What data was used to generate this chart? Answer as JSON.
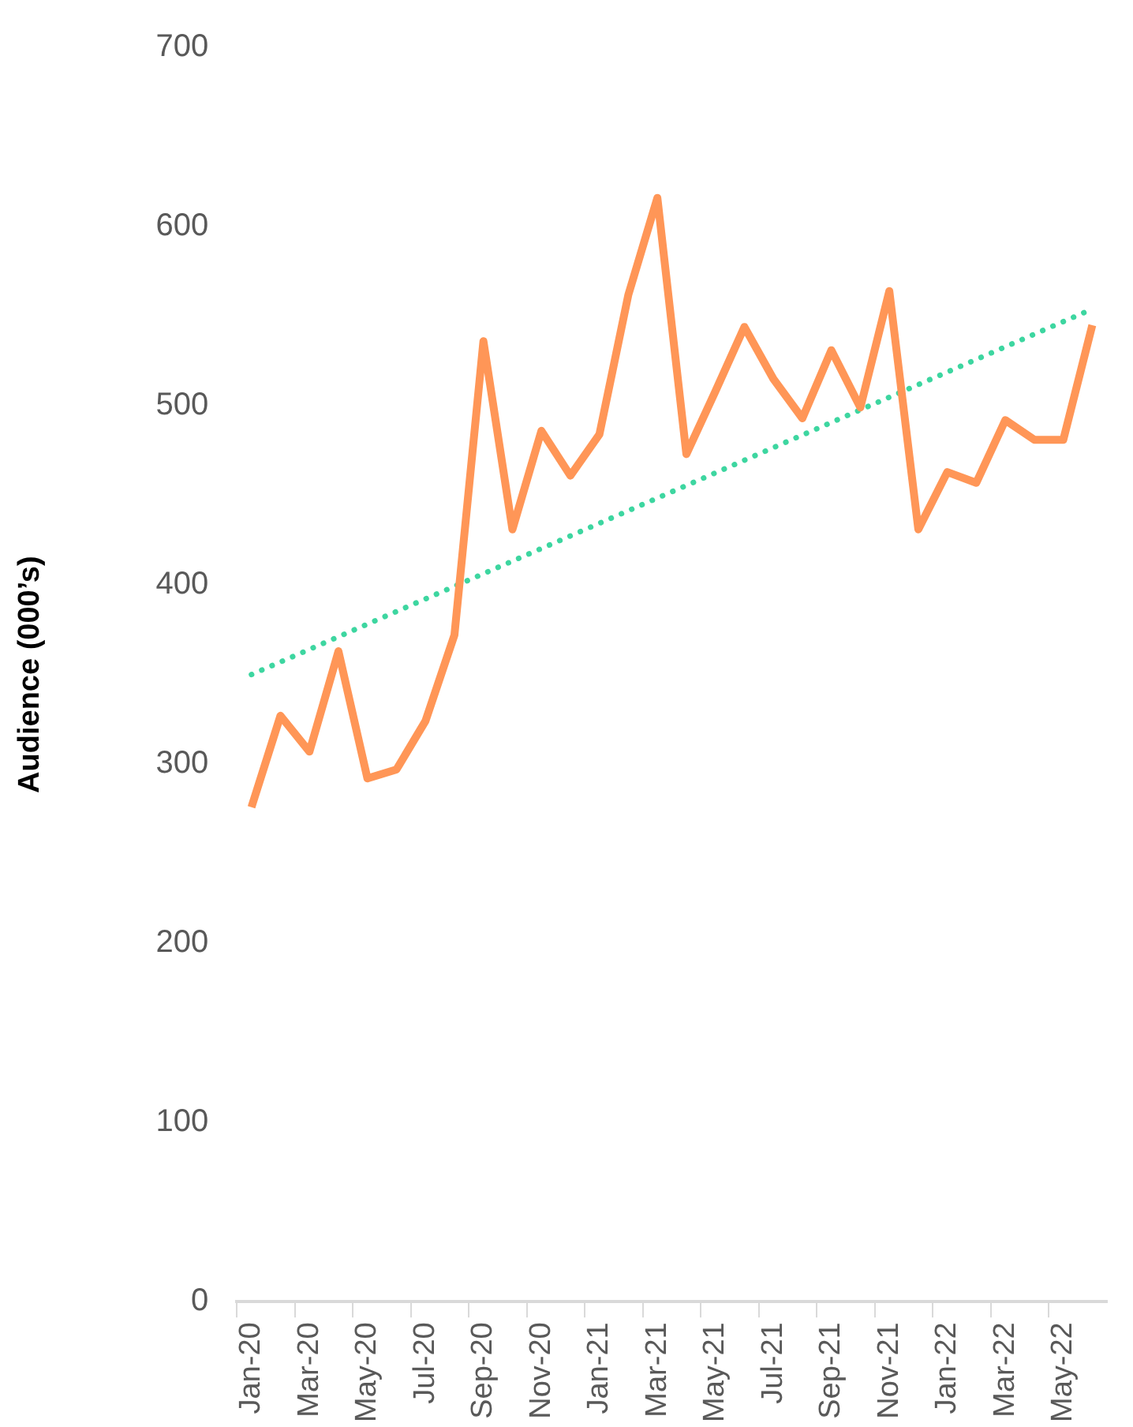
{
  "chart_data": {
    "type": "line",
    "ylabel": "Audience (000’s)",
    "categories": [
      "Jan-20",
      null,
      "Mar-20",
      null,
      "May-20",
      null,
      "Jul-20",
      null,
      "Sep-20",
      null,
      "Nov-20",
      null,
      "Jan-21",
      null,
      "Mar-21",
      null,
      "May-21",
      null,
      "Jul-21",
      null,
      "Sep-21",
      null,
      "Nov-21",
      null,
      "Jan-22",
      null,
      "Mar-22",
      null,
      "May-22",
      null
    ],
    "series": [
      {
        "color": "#ff9657",
        "values": [
          276,
          327,
          307,
          363,
          292,
          297,
          324,
          372,
          536,
          431,
          486,
          461,
          484,
          562,
          616,
          473,
          508,
          544,
          515,
          493,
          531,
          499,
          564,
          431,
          463,
          457,
          492,
          481,
          481,
          545
        ]
      },
      {
        "type": "line",
        "line_style": "dotted",
        "color": "#3dd6a0",
        "values": [
          350,
          null,
          null,
          null,
          null,
          null,
          null,
          null,
          null,
          null,
          null,
          null,
          null,
          null,
          null,
          null,
          null,
          null,
          null,
          null,
          null,
          null,
          null,
          null,
          null,
          null,
          null,
          null,
          null,
          554
        ]
      }
    ],
    "ylim": [
      0,
      700
    ],
    "yticks": [
      0,
      100,
      200,
      300,
      400,
      500,
      600,
      700
    ],
    "grid": false,
    "legend": false,
    "marker": "none"
  }
}
